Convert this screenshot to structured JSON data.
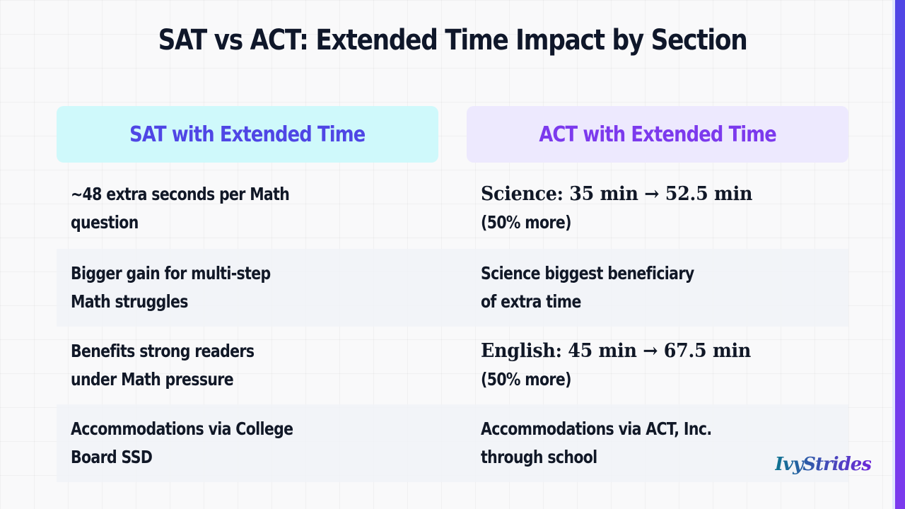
{
  "title": "SAT vs ACT: Extended Time Impact by Section",
  "columns": {
    "sat": "SAT with Extended Time",
    "act": "ACT with Extended Time"
  },
  "rows": [
    {
      "sat": "~48 extra seconds per Math\nquestion",
      "act_main": "Science: 35 min → 52.5 min",
      "act_sub": "(50% more)"
    },
    {
      "sat": "Bigger gain for multi-step\nMath struggles",
      "act": "Science biggest beneficiary\nof extra time"
    },
    {
      "sat": "Benefits strong readers\nunder Math pressure",
      "act_main": "English: 45 min → 67.5 min",
      "act_sub": "(50% more)"
    },
    {
      "sat": "Accommodations via College\nBoard SSD",
      "act": "Accommodations via ACT, Inc.\nthrough school"
    }
  ],
  "logo": "IvyStrides",
  "colors": {
    "sat_accent": "#4f46e5",
    "act_accent": "#7c3aed",
    "sat_header_bg": "#cff9fb",
    "act_header_bg": "#ede9fe"
  }
}
